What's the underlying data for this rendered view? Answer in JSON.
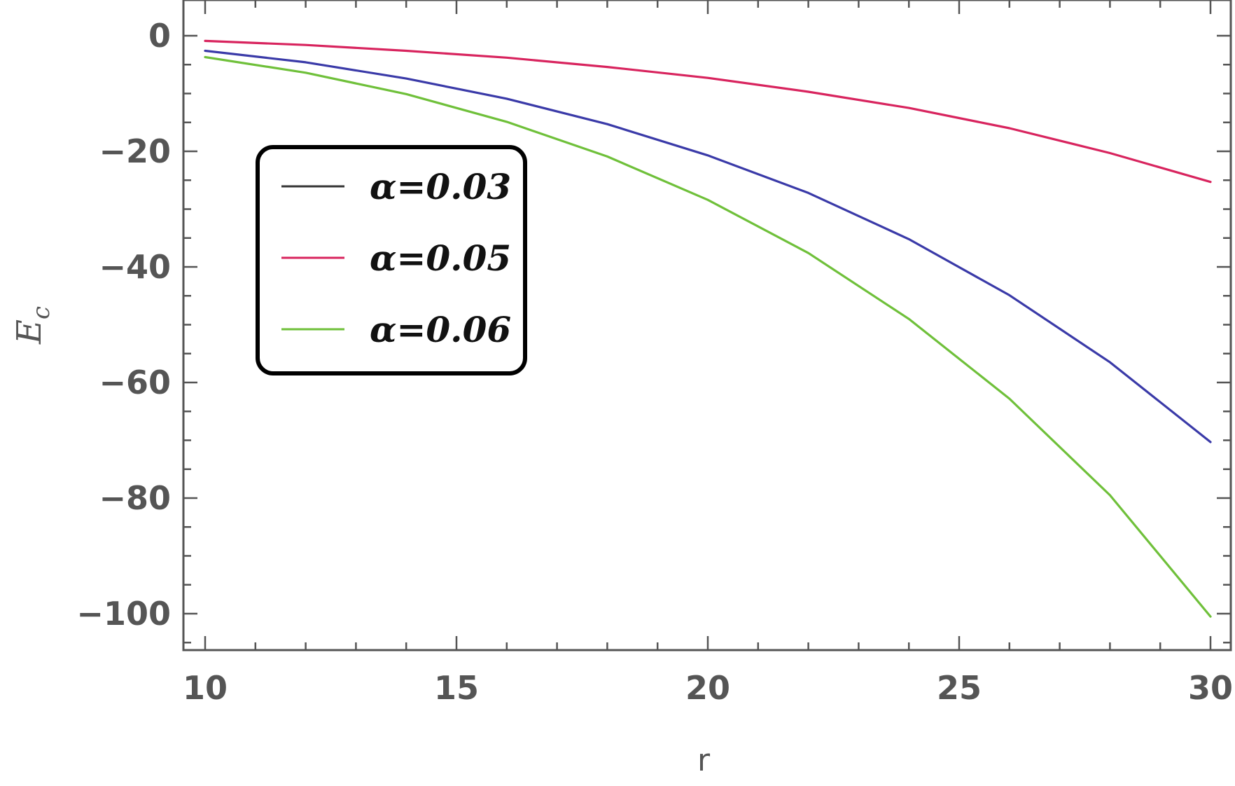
{
  "chart_data": {
    "type": "line",
    "title": "",
    "xlabel": "r",
    "ylabel": "E_c",
    "ylabel_main": "E",
    "ylabel_sub": "c",
    "xlim": [
      10,
      30
    ],
    "ylim": [
      -106,
      5
    ],
    "x_ticks": [
      10,
      15,
      20,
      25,
      30
    ],
    "x_tick_labels": [
      "10",
      "15",
      "20",
      "25",
      "30"
    ],
    "y_ticks": [
      0,
      -20,
      -40,
      -60,
      -80,
      -100
    ],
    "y_tick_labels": [
      "0",
      "−20",
      "−40",
      "−60",
      "−80",
      "−100"
    ],
    "legend_position": "upper-left",
    "x": [
      10,
      12,
      14,
      16,
      18,
      20,
      22,
      24,
      26,
      28,
      30
    ],
    "series": [
      {
        "name": "α=0.03",
        "color": "#3a3aa8",
        "values": [
          -2.6,
          -4.6,
          -7.4,
          -10.9,
          -15.3,
          -20.7,
          -27.2,
          -35.2,
          -44.9,
          -56.5,
          -70.3
        ]
      },
      {
        "name": "α=0.05",
        "color": "#d8245e",
        "values": [
          -0.9,
          -1.6,
          -2.6,
          -3.8,
          -5.4,
          -7.3,
          -9.7,
          -12.5,
          -16.0,
          -20.3,
          -25.3
        ]
      },
      {
        "name": "α=0.06",
        "color": "#6fc03a",
        "values": [
          -3.7,
          -6.4,
          -10.1,
          -14.9,
          -20.9,
          -28.4,
          -37.6,
          -49.0,
          -62.8,
          -79.5,
          -100.5
        ]
      }
    ],
    "grid": false
  }
}
